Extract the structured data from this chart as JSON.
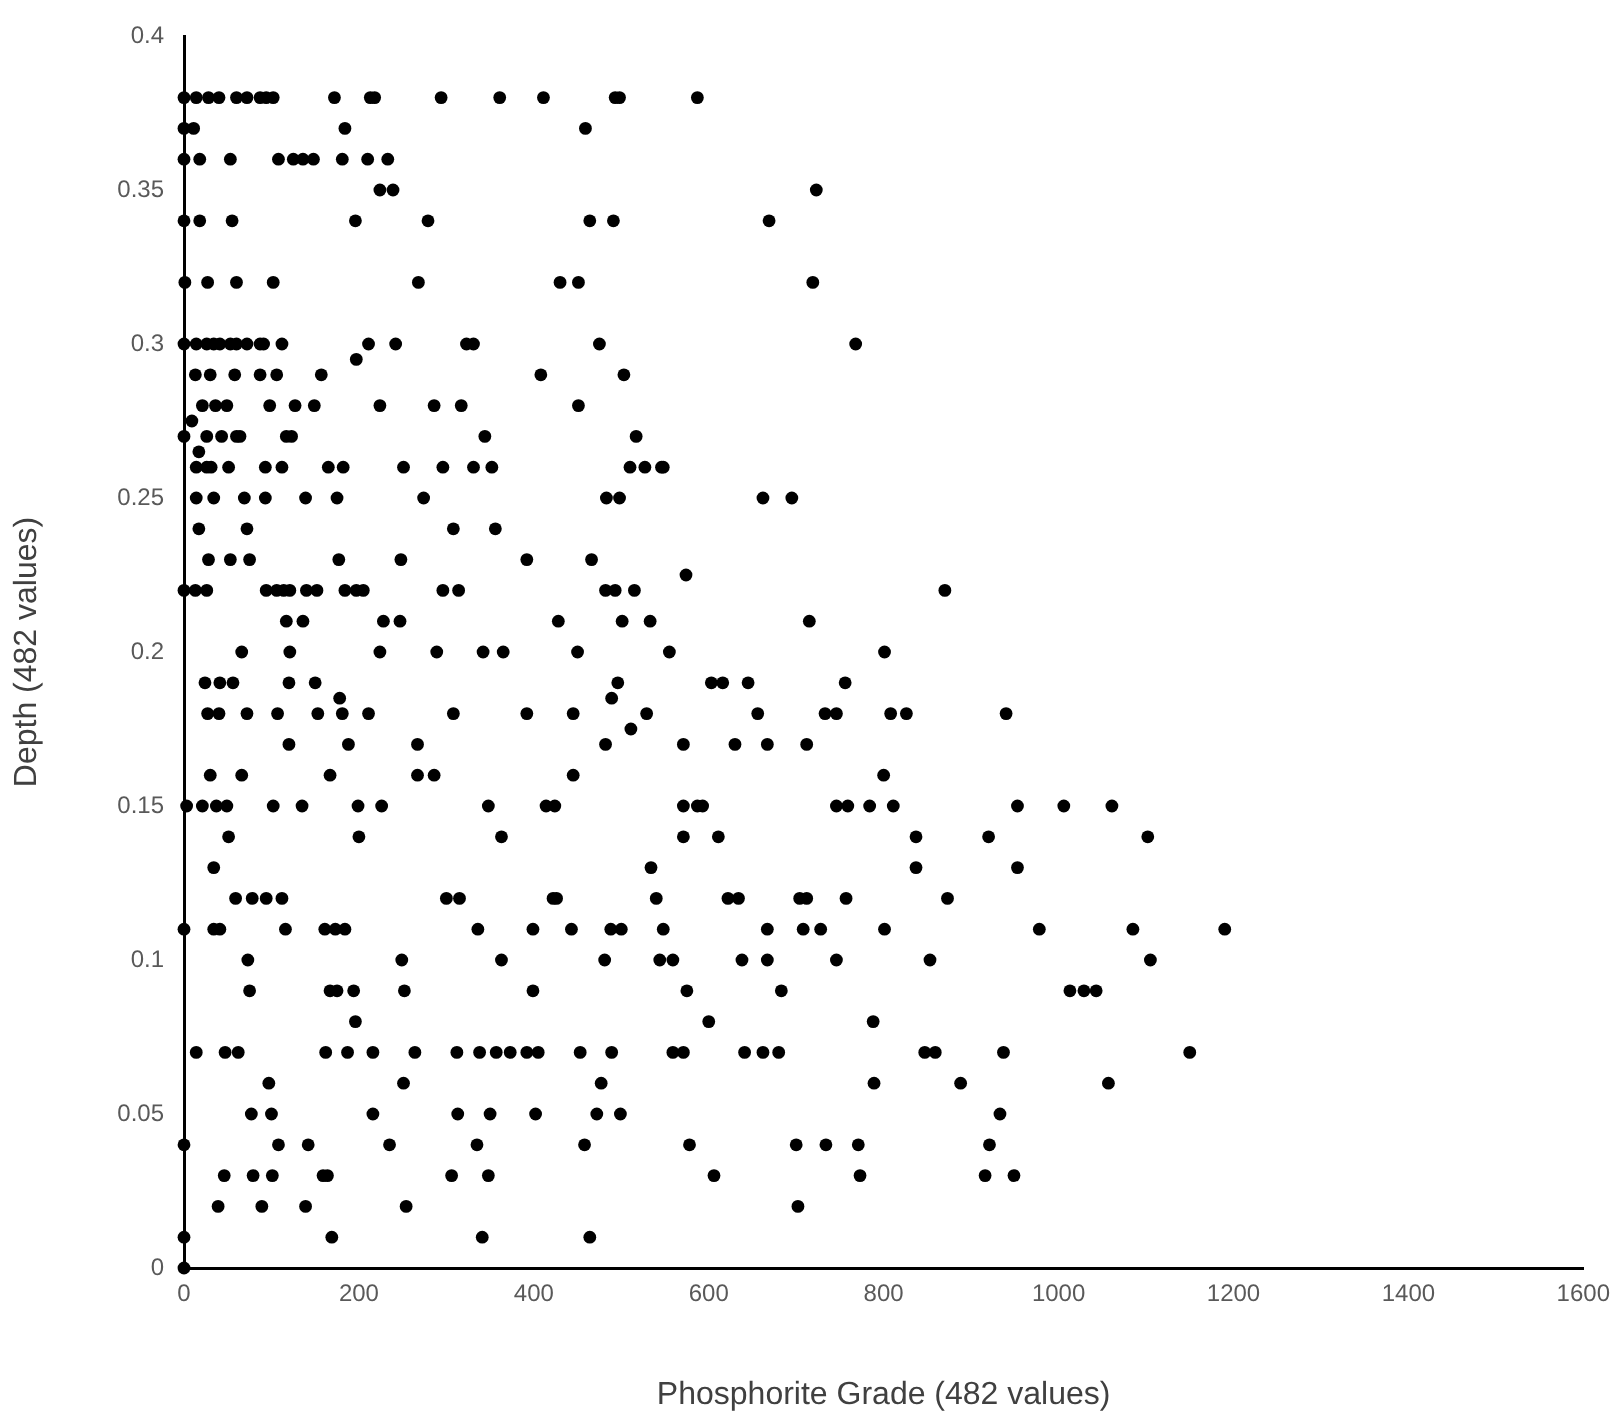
{
  "chart_data": {
    "type": "scatter",
    "xlabel": "Phosphorite Grade (482 values)",
    "ylabel": "Depth (482 values)",
    "color": "#000000",
    "marker": "circle",
    "grid": false,
    "xlim": [
      0,
      1600
    ],
    "xticks": [
      0,
      200,
      400,
      600,
      800,
      1000,
      1200,
      1400,
      1600
    ],
    "ylim": [
      0,
      0.4
    ],
    "yticks": [
      0,
      0.05,
      0.1,
      0.15,
      0.2,
      0.25,
      0.3,
      0.35,
      0.4
    ],
    "x": [
      0,
      14,
      28,
      40,
      60,
      72,
      87,
      94,
      102,
      172,
      213,
      218,
      294,
      361,
      411,
      493,
      498,
      587,
      0,
      11,
      184,
      459,
      0,
      18,
      53,
      108,
      125,
      136,
      148,
      181,
      210,
      233,
      224,
      239,
      723,
      0,
      18,
      55,
      196,
      279,
      464,
      491,
      669,
      1,
      27,
      60,
      102,
      268,
      430,
      451,
      719,
      0,
      14,
      26,
      34,
      41,
      53,
      60,
      72,
      87,
      91,
      112,
      211,
      242,
      323,
      331,
      475,
      768,
      197,
      13,
      30,
      58,
      87,
      106,
      157,
      408,
      503,
      21,
      36,
      49,
      98,
      127,
      149,
      224,
      286,
      317,
      451,
      9,
      0,
      26,
      43,
      60,
      64,
      117,
      123,
      344,
      517,
      17,
      14,
      26,
      31,
      51,
      93,
      112,
      165,
      182,
      251,
      296,
      331,
      352,
      510,
      527,
      546,
      548,
      14,
      34,
      69,
      93,
      139,
      175,
      274,
      483,
      498,
      662,
      695,
      17,
      72,
      308,
      356,
      28,
      53,
      75,
      177,
      248,
      392,
      466,
      574,
      0,
      13,
      26,
      94,
      106,
      114,
      121,
      140,
      152,
      184,
      197,
      205,
      296,
      314,
      482,
      493,
      515,
      870,
      117,
      136,
      228,
      247,
      428,
      501,
      533,
      715,
      66,
      121,
      224,
      289,
      342,
      365,
      450,
      555,
      801,
      24,
      41,
      56,
      120,
      150,
      496,
      603,
      616,
      645,
      756,
      178,
      489,
      27,
      40,
      72,
      107,
      153,
      181,
      211,
      308,
      392,
      445,
      529,
      656,
      733,
      746,
      808,
      826,
      940,
      511,
      120,
      188,
      267,
      482,
      571,
      630,
      667,
      712,
      30,
      66,
      167,
      267,
      286,
      445,
      800,
      3,
      21,
      37,
      49,
      102,
      135,
      199,
      226,
      348,
      414,
      424,
      571,
      587,
      593,
      746,
      759,
      784,
      811,
      953,
      1006,
      1061,
      51,
      200,
      363,
      571,
      611,
      837,
      920,
      1102,
      34,
      534,
      837,
      953,
      59,
      78,
      94,
      112,
      300,
      315,
      422,
      426,
      540,
      622,
      634,
      704,
      712,
      757,
      873,
      0,
      34,
      41,
      116,
      161,
      173,
      184,
      336,
      399,
      443,
      488,
      500,
      548,
      667,
      708,
      728,
      801,
      978,
      1085,
      1190,
      73,
      249,
      363,
      481,
      544,
      559,
      638,
      667,
      746,
      853,
      1105,
      75,
      167,
      175,
      194,
      252,
      399,
      575,
      683,
      1013,
      1029,
      1043,
      196,
      600,
      788,
      14,
      47,
      62,
      162,
      187,
      216,
      264,
      312,
      338,
      357,
      373,
      392,
      405,
      453,
      489,
      559,
      571,
      641,
      662,
      680,
      847,
      859,
      937,
      1150,
      97,
      251,
      477,
      789,
      888,
      1057,
      77,
      100,
      216,
      313,
      350,
      402,
      472,
      499,
      933,
      0,
      108,
      142,
      235,
      335,
      458,
      578,
      700,
      734,
      771,
      921,
      46,
      79,
      101,
      159,
      164,
      306,
      348,
      606,
      773,
      916,
      949,
      39,
      89,
      139,
      254,
      702,
      0,
      169,
      341,
      464,
      0
    ],
    "values": [
      0.38,
      0.38,
      0.38,
      0.38,
      0.38,
      0.38,
      0.38,
      0.38,
      0.38,
      0.38,
      0.38,
      0.38,
      0.38,
      0.38,
      0.38,
      0.38,
      0.38,
      0.38,
      0.37,
      0.37,
      0.37,
      0.37,
      0.36,
      0.36,
      0.36,
      0.36,
      0.36,
      0.36,
      0.36,
      0.36,
      0.36,
      0.36,
      0.35,
      0.35,
      0.35,
      0.34,
      0.34,
      0.34,
      0.34,
      0.34,
      0.34,
      0.34,
      0.34,
      0.32,
      0.32,
      0.32,
      0.32,
      0.32,
      0.32,
      0.32,
      0.32,
      0.3,
      0.3,
      0.3,
      0.3,
      0.3,
      0.3,
      0.3,
      0.3,
      0.3,
      0.3,
      0.3,
      0.3,
      0.3,
      0.3,
      0.3,
      0.3,
      0.3,
      0.295,
      0.29,
      0.29,
      0.29,
      0.29,
      0.29,
      0.29,
      0.29,
      0.29,
      0.28,
      0.28,
      0.28,
      0.28,
      0.28,
      0.28,
      0.28,
      0.28,
      0.28,
      0.28,
      0.275,
      0.27,
      0.27,
      0.27,
      0.27,
      0.27,
      0.27,
      0.27,
      0.27,
      0.27,
      0.265,
      0.26,
      0.26,
      0.26,
      0.26,
      0.26,
      0.26,
      0.26,
      0.26,
      0.26,
      0.26,
      0.26,
      0.26,
      0.26,
      0.26,
      0.26,
      0.26,
      0.25,
      0.25,
      0.25,
      0.25,
      0.25,
      0.25,
      0.25,
      0.25,
      0.25,
      0.25,
      0.25,
      0.24,
      0.24,
      0.24,
      0.24,
      0.23,
      0.23,
      0.23,
      0.23,
      0.23,
      0.23,
      0.23,
      0.225,
      0.22,
      0.22,
      0.22,
      0.22,
      0.22,
      0.22,
      0.22,
      0.22,
      0.22,
      0.22,
      0.22,
      0.22,
      0.22,
      0.22,
      0.22,
      0.22,
      0.22,
      0.22,
      0.21,
      0.21,
      0.21,
      0.21,
      0.21,
      0.21,
      0.21,
      0.21,
      0.2,
      0.2,
      0.2,
      0.2,
      0.2,
      0.2,
      0.2,
      0.2,
      0.2,
      0.19,
      0.19,
      0.19,
      0.19,
      0.19,
      0.19,
      0.19,
      0.19,
      0.19,
      0.19,
      0.185,
      0.185,
      0.18,
      0.18,
      0.18,
      0.18,
      0.18,
      0.18,
      0.18,
      0.18,
      0.18,
      0.18,
      0.18,
      0.18,
      0.18,
      0.18,
      0.18,
      0.18,
      0.18,
      0.175,
      0.17,
      0.17,
      0.17,
      0.17,
      0.17,
      0.17,
      0.17,
      0.17,
      0.16,
      0.16,
      0.16,
      0.16,
      0.16,
      0.16,
      0.16,
      0.15,
      0.15,
      0.15,
      0.15,
      0.15,
      0.15,
      0.15,
      0.15,
      0.15,
      0.15,
      0.15,
      0.15,
      0.15,
      0.15,
      0.15,
      0.15,
      0.15,
      0.15,
      0.15,
      0.15,
      0.15,
      0.14,
      0.14,
      0.14,
      0.14,
      0.14,
      0.14,
      0.14,
      0.14,
      0.13,
      0.13,
      0.13,
      0.13,
      0.12,
      0.12,
      0.12,
      0.12,
      0.12,
      0.12,
      0.12,
      0.12,
      0.12,
      0.12,
      0.12,
      0.12,
      0.12,
      0.12,
      0.12,
      0.11,
      0.11,
      0.11,
      0.11,
      0.11,
      0.11,
      0.11,
      0.11,
      0.11,
      0.11,
      0.11,
      0.11,
      0.11,
      0.11,
      0.11,
      0.11,
      0.11,
      0.11,
      0.11,
      0.11,
      0.1,
      0.1,
      0.1,
      0.1,
      0.1,
      0.1,
      0.1,
      0.1,
      0.1,
      0.1,
      0.1,
      0.09,
      0.09,
      0.09,
      0.09,
      0.09,
      0.09,
      0.09,
      0.09,
      0.09,
      0.09,
      0.09,
      0.08,
      0.08,
      0.08,
      0.07,
      0.07,
      0.07,
      0.07,
      0.07,
      0.07,
      0.07,
      0.07,
      0.07,
      0.07,
      0.07,
      0.07,
      0.07,
      0.07,
      0.07,
      0.07,
      0.07,
      0.07,
      0.07,
      0.07,
      0.07,
      0.07,
      0.07,
      0.07,
      0.06,
      0.06,
      0.06,
      0.06,
      0.06,
      0.06,
      0.05,
      0.05,
      0.05,
      0.05,
      0.05,
      0.05,
      0.05,
      0.05,
      0.05,
      0.04,
      0.04,
      0.04,
      0.04,
      0.04,
      0.04,
      0.04,
      0.04,
      0.04,
      0.04,
      0.04,
      0.03,
      0.03,
      0.03,
      0.03,
      0.03,
      0.03,
      0.03,
      0.03,
      0.03,
      0.03,
      0.03,
      0.02,
      0.02,
      0.02,
      0.02,
      0.02,
      0.01,
      0.01,
      0.01,
      0.01,
      0
    ]
  }
}
